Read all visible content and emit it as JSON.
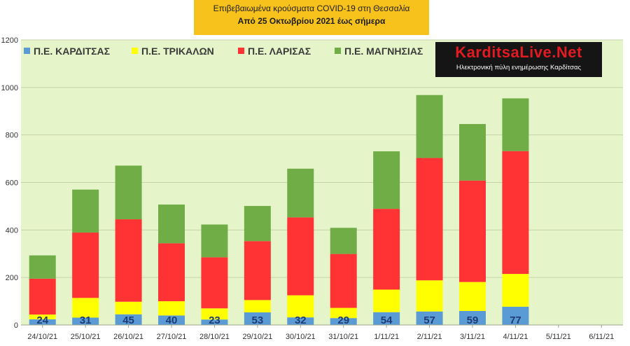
{
  "title": {
    "line1": "Επιβεβαιωμένα κρούσματα COVID-19 στη Θεσσαλία",
    "line2": "Από 25 Οκτωβρίου 2021 έως σήμερα"
  },
  "logo": {
    "brand": "KarditsaLive.Net",
    "tagline": "Ηλεκτρονική πύλη ενημέρωσης Καρδίτσας"
  },
  "chart_data": {
    "type": "bar",
    "stacked": true,
    "categories": [
      "24/10/21",
      "25/10/21",
      "26/10/21",
      "27/10/21",
      "28/10/21",
      "29/10/21",
      "30/10/21",
      "31/10/21",
      "1/11/21",
      "2/11/21",
      "3/11/21",
      "4/11/21",
      "5/11/21",
      "6/11/21"
    ],
    "series": [
      {
        "name": "Π.Ε. ΚΑΡΔΙΤΣΑΣ",
        "color": "#5b9bd5",
        "values": [
          24,
          31,
          45,
          40,
          23,
          53,
          32,
          29,
          54,
          57,
          59,
          77,
          0,
          0
        ]
      },
      {
        "name": "Π.Ε. ΤΡΙΚΑΛΩΝ",
        "color": "#ffff00",
        "values": [
          20,
          83,
          53,
          60,
          47,
          52,
          93,
          43,
          95,
          131,
          122,
          138,
          0,
          0
        ]
      },
      {
        "name": "Π.Ε. ΛΑΡΙΣΑΣ",
        "color": "#ff3333",
        "values": [
          151,
          275,
          347,
          244,
          215,
          248,
          328,
          227,
          340,
          515,
          427,
          517,
          0,
          0
        ]
      },
      {
        "name": "Π.Ε. ΜΑΓΝΗΣΙΑΣ",
        "color": "#70ad47",
        "values": [
          98,
          181,
          226,
          163,
          138,
          148,
          205,
          110,
          242,
          265,
          238,
          222,
          0,
          0
        ]
      }
    ],
    "data_labels": [
      "24",
      "31",
      "45",
      "40",
      "23",
      "53",
      "32",
      "29",
      "54",
      "57",
      "59",
      "77",
      "",
      ""
    ],
    "yticks": [
      "0",
      "200",
      "400",
      "600",
      "800",
      "1000",
      "1200"
    ],
    "ylim": [
      0,
      1200
    ],
    "grid": true,
    "legend": "top-left",
    "plot_background": "#e6f5c9"
  }
}
